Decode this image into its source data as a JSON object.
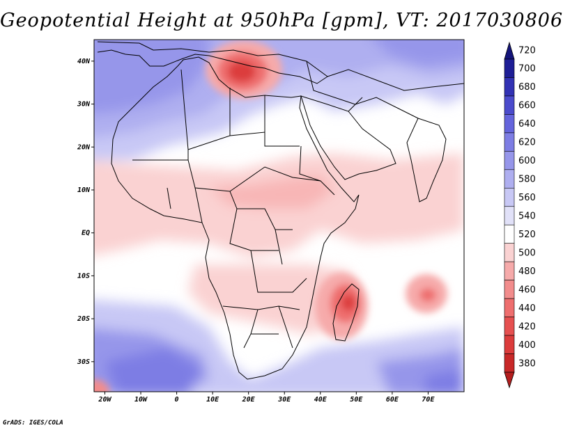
{
  "title": "Geopotential Height at 950hPa [gpm], VT: 2017030806",
  "footer": "GrADS: IGES/COLA",
  "map": {
    "region": "Africa, Arabian Peninsula and western Indian Ocean",
    "lon_range": [
      -23,
      80
    ],
    "lat_range": [
      -37,
      45
    ],
    "lon_ticks": [
      {
        "value": -20,
        "label": "20W"
      },
      {
        "value": -10,
        "label": "10W"
      },
      {
        "value": 0,
        "label": "0"
      },
      {
        "value": 10,
        "label": "10E"
      },
      {
        "value": 20,
        "label": "20E"
      },
      {
        "value": 30,
        "label": "30E"
      },
      {
        "value": 40,
        "label": "40E"
      },
      {
        "value": 50,
        "label": "50E"
      },
      {
        "value": 60,
        "label": "60E"
      },
      {
        "value": 70,
        "label": "70E"
      }
    ],
    "lat_ticks": [
      {
        "value": 40,
        "label": "40N"
      },
      {
        "value": 30,
        "label": "30N"
      },
      {
        "value": 20,
        "label": "20N"
      },
      {
        "value": 10,
        "label": "10N"
      },
      {
        "value": 0,
        "label": "EQ"
      },
      {
        "value": -10,
        "label": "10S"
      },
      {
        "value": -20,
        "label": "20S"
      },
      {
        "value": -30,
        "label": "30S"
      }
    ]
  },
  "colorbar": {
    "levels": [
      380,
      400,
      420,
      440,
      460,
      480,
      500,
      520,
      540,
      560,
      580,
      600,
      620,
      640,
      660,
      680,
      700,
      720
    ],
    "colors": [
      "#b41e1e",
      "#c82828",
      "#dc3c3c",
      "#e65050",
      "#ee6e6e",
      "#f28c8c",
      "#f6aaaa",
      "#fad2d2",
      "#ffffff",
      "#e1e1f8",
      "#c8c8f5",
      "#afaff0",
      "#9696ea",
      "#7d7de4",
      "#6464dc",
      "#4b4bcc",
      "#3232b4",
      "#1e1e96",
      "#14147a"
    ]
  }
}
